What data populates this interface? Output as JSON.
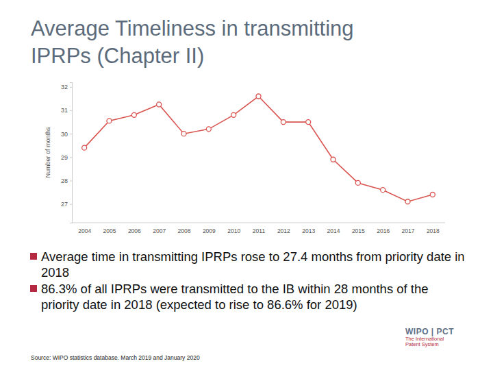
{
  "chart_data": {
    "type": "line",
    "title": "Average Timeliness in transmitting IPRPs (Chapter II)",
    "y_label": "Number of months",
    "categories": [
      "2004",
      "2005",
      "2006",
      "2007",
      "2008",
      "2009",
      "2010",
      "2011",
      "2012",
      "2013",
      "2014",
      "2015",
      "2016",
      "2017",
      "2018"
    ],
    "values": [
      29.4,
      30.55,
      30.8,
      31.25,
      30.0,
      30.2,
      30.8,
      31.6,
      30.5,
      30.5,
      28.9,
      27.9,
      27.6,
      27.1,
      27.4
    ],
    "color": "#d9534f",
    "marker": "circle",
    "grid": false,
    "ylim": [
      26.2,
      32.2
    ],
    "yticks": [
      27,
      28,
      29,
      30,
      31,
      32
    ]
  },
  "slide": {
    "bullets": [
      "Average time in transmitting IPRPs rose to 27.4 months from priority date in 2018",
      "86.3% of all IPRPs were transmitted to the IB within 28 months of the priority date in 2018 (expected to rise to 86.6% for 2019)"
    ],
    "source": "Source: WIPO statistics database. March 2019 and January 2020",
    "logo": {
      "text": "WIPO | PCT",
      "tagline": [
        "The International",
        "Patent System"
      ]
    }
  }
}
